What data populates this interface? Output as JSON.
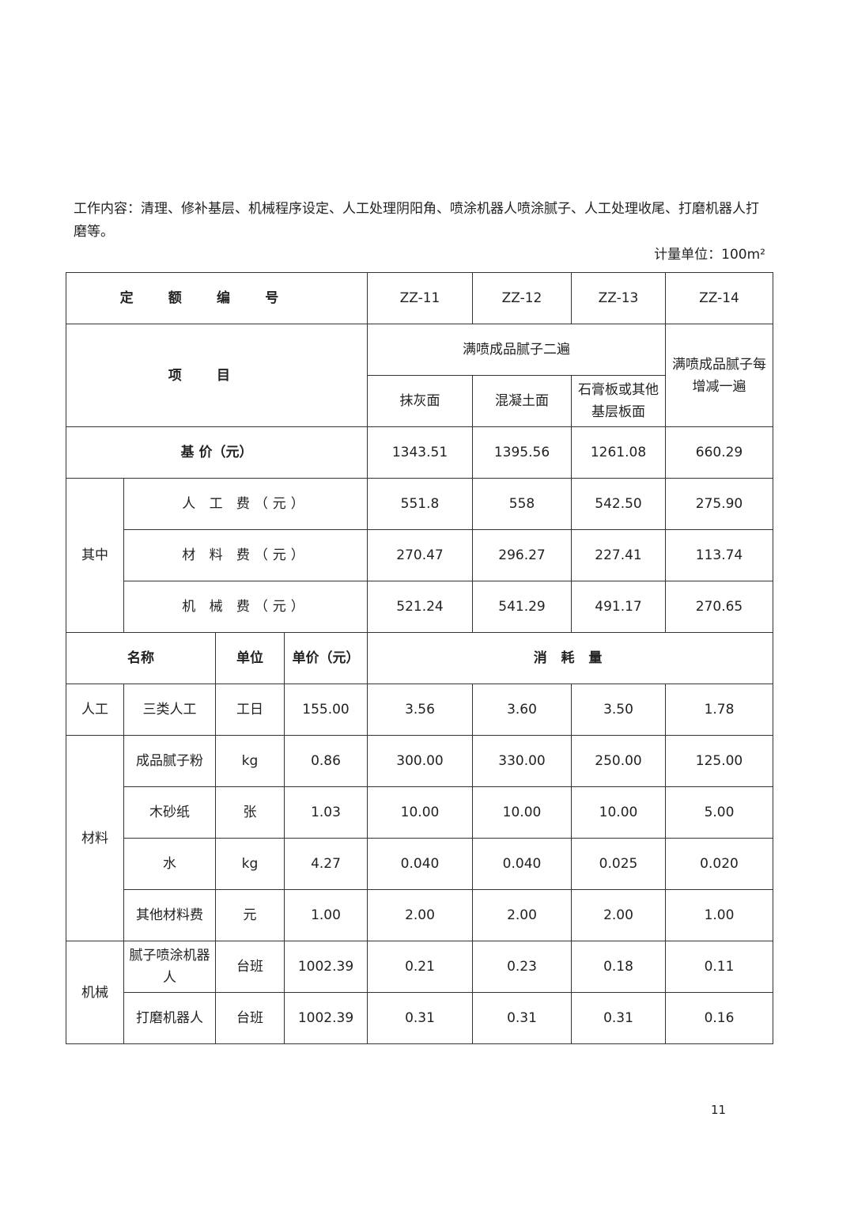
{
  "intro": "工作内容：清理、修补基层、机械程序设定、人工处理阴阳角、喷涂机器人喷涂腻子、人工处理收尾、打磨机器人打磨等。",
  "unit": "计量单位：100m²",
  "header": {
    "code_label": "定额编号",
    "codes": [
      "ZZ-11",
      "ZZ-12",
      "ZZ-13",
      "ZZ-14"
    ],
    "item_label": "项目",
    "group": "满喷成品腻子二遍",
    "sub": [
      "抹灰面",
      "混凝土面",
      "石膏板或其他基层板面"
    ],
    "extra": "满喷成品腻子每增减一遍"
  },
  "base": {
    "label": "基 价（元）",
    "values": [
      "1343.51",
      "1395.56",
      "1261.08",
      "660.29"
    ]
  },
  "of_which": {
    "label": "其中",
    "rows": [
      {
        "label": "人 工 费（元）",
        "values": [
          "551.8",
          "558",
          "542.50",
          "275.90"
        ]
      },
      {
        "label": "材 料 费（元）",
        "values": [
          "270.47",
          "296.27",
          "227.41",
          "113.74"
        ]
      },
      {
        "label": "机 械 费（元）",
        "values": [
          "521.24",
          "541.29",
          "491.17",
          "270.65"
        ]
      }
    ]
  },
  "cols": {
    "name": "名称",
    "unit": "单位",
    "price": "单价（元）",
    "consumption": "消 耗 量"
  },
  "groups": [
    {
      "label": "人工",
      "rows": [
        {
          "name": "三类人工",
          "unit": "工日",
          "price": "155.00",
          "values": [
            "3.56",
            "3.60",
            "3.50",
            "1.78"
          ]
        }
      ]
    },
    {
      "label": "材料",
      "rows": [
        {
          "name": "成品腻子粉",
          "unit": "kg",
          "price": "0.86",
          "values": [
            "300.00",
            "330.00",
            "250.00",
            "125.00"
          ]
        },
        {
          "name": "木砂纸",
          "unit": "张",
          "price": "1.03",
          "values": [
            "10.00",
            "10.00",
            "10.00",
            "5.00"
          ]
        },
        {
          "name": "水",
          "unit": "kg",
          "price": "4.27",
          "values": [
            "0.040",
            "0.040",
            "0.025",
            "0.020"
          ]
        },
        {
          "name": "其他材料费",
          "unit": "元",
          "price": "1.00",
          "values": [
            "2.00",
            "2.00",
            "2.00",
            "1.00"
          ]
        }
      ]
    },
    {
      "label": "机械",
      "rows": [
        {
          "name": "腻子喷涂机器人",
          "unit": "台班",
          "price": "1002.39",
          "values": [
            "0.21",
            "0.23",
            "0.18",
            "0.11"
          ]
        },
        {
          "name": "打磨机器人",
          "unit": "台班",
          "price": "1002.39",
          "values": [
            "0.31",
            "0.31",
            "0.31",
            "0.16"
          ]
        }
      ]
    }
  ],
  "page_number": "11"
}
